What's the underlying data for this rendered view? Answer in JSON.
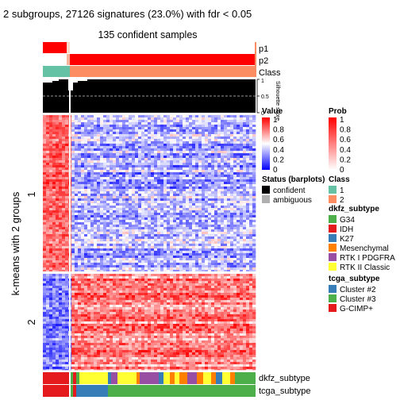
{
  "chart_data": {
    "type": "heatmap",
    "title": "2 subgroups, 27126 signatures (23.0%) with fdr < 0.05",
    "subtitle": "135 confident samples",
    "row_title": "k-means with 2 groups",
    "row_groups": [
      "1",
      "2"
    ],
    "value_scale": [
      0,
      1
    ],
    "top_annotations": [
      {
        "name": "p1"
      },
      {
        "name": "p2"
      },
      {
        "name": "Class"
      },
      {
        "name": "Silhouette score",
        "axis_ticks": [
          "1",
          "0.5",
          "0"
        ]
      }
    ],
    "bottom_annotations": [
      {
        "name": "dkfz_subtype"
      },
      {
        "name": "tcga_subtype"
      }
    ],
    "legends": {
      "value": {
        "title": "Value",
        "ticks": [
          "1",
          "0.8",
          "0.6",
          "0.4",
          "0.2",
          "0"
        ]
      },
      "prob": {
        "title": "Prob",
        "ticks": [
          "1",
          "0.8",
          "0.6",
          "0.4",
          "0.2",
          "0"
        ]
      },
      "status": {
        "title": "Status (barplots)",
        "items": [
          {
            "label": "confident",
            "color": "#000000"
          },
          {
            "label": "ambiguous",
            "color": "#b0b0b0"
          }
        ]
      },
      "class": {
        "title": "Class",
        "items": [
          {
            "label": "1",
            "color": "#66c2a5"
          },
          {
            "label": "2",
            "color": "#fc8d62"
          }
        ]
      },
      "dkfz_subtype": {
        "title": "dkfz_subtype",
        "items": [
          {
            "label": "G34",
            "color": "#4daf4a"
          },
          {
            "label": "IDH",
            "color": "#e41a1c"
          },
          {
            "label": "K27",
            "color": "#377eb8"
          },
          {
            "label": "Mesenchymal",
            "color": "#ff7f00"
          },
          {
            "label": "RTK I PDGFRA",
            "color": "#984ea3"
          },
          {
            "label": "RTK II Classic",
            "color": "#ffff33"
          }
        ]
      },
      "tcga_subtype": {
        "title": "tcga_subtype",
        "items": [
          {
            "label": "Cluster #2",
            "color": "#377eb8"
          },
          {
            "label": "Cluster #3",
            "color": "#4daf4a"
          },
          {
            "label": "G-CIMP+",
            "color": "#e41a1c"
          }
        ]
      }
    }
  }
}
